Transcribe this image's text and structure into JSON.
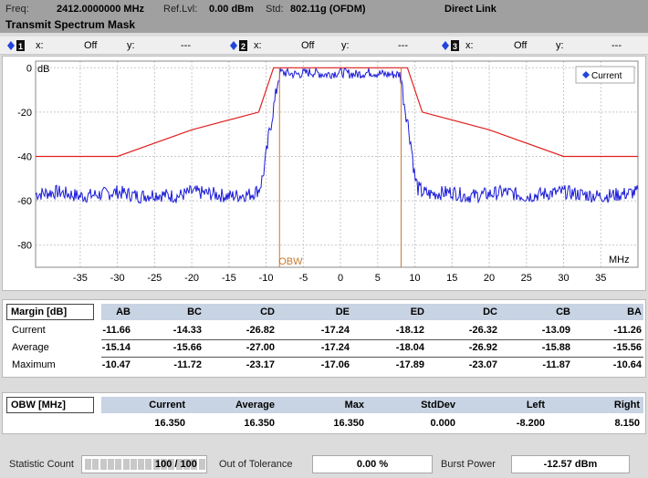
{
  "header": {
    "freq_label": "Freq:",
    "freq_value": "2412.0000000 MHz",
    "reflvl_label": "Ref.Lvl:",
    "reflvl_value": "0.00 dBm",
    "std_label": "Std:",
    "std_value": "802.11g (OFDM)",
    "link": "Direct Link",
    "title": "Transmit Spectrum Mask"
  },
  "markers": [
    {
      "x_label": "x:",
      "x_value": "Off",
      "y_label": "y:",
      "y_value": "---"
    },
    {
      "x_label": "x:",
      "x_value": "Off",
      "y_label": "y:",
      "y_value": "---"
    },
    {
      "x_label": "x:",
      "x_value": "Off",
      "y_label": "y:",
      "y_value": "---"
    }
  ],
  "colors": {
    "trace": "#1a1ad8",
    "mask": "#e02020",
    "obw": "#c87a30",
    "header_bg": "#a0a0a0",
    "table_header": "#c8d3e3",
    "legend_marker": "#2244dd"
  },
  "chart_data": {
    "type": "line",
    "ylabel": "dB",
    "xlabel": "MHz",
    "xlim": [
      -41,
      40
    ],
    "ylim": [
      -90,
      3
    ],
    "x_ticks": [
      -35,
      -30,
      -25,
      -20,
      -15,
      -10,
      -5,
      0,
      5,
      10,
      15,
      20,
      25,
      30,
      35
    ],
    "y_ticks": [
      0,
      -20,
      -40,
      -60,
      -80
    ],
    "grid": true,
    "legend_position": "top-right",
    "series": [
      {
        "name": "Current",
        "type": "trace",
        "x": [
          -41,
          -38,
          -35,
          -32,
          -30,
          -27,
          -25,
          -22,
          -20,
          -17,
          -15,
          -12,
          -11,
          -10.5,
          -10,
          -9.6,
          -9.2,
          -9,
          -8.8,
          -8.6,
          -8.4,
          -8.2,
          -8,
          -6,
          -4,
          -2,
          0,
          2,
          4,
          6,
          7.5,
          8,
          8.2,
          8.4,
          8.6,
          8.8,
          9,
          9.3,
          9.7,
          10,
          10.5,
          11,
          12,
          15,
          17,
          20,
          22,
          25,
          27,
          30,
          32,
          35,
          38,
          40
        ],
        "y": [
          -57,
          -56,
          -58,
          -57,
          -56,
          -58,
          -57,
          -58,
          -56,
          -57,
          -58,
          -57,
          -55,
          -50,
          -40,
          -30,
          -22,
          -18,
          -15,
          -10,
          -5,
          -3,
          -2,
          -3,
          -2,
          -3,
          -2,
          -3,
          -2,
          -3,
          -3,
          -3,
          -5,
          -12,
          -16,
          -20,
          -24,
          -30,
          -40,
          -50,
          -55,
          -56,
          -57,
          -56,
          -58,
          -57,
          -56,
          -58,
          -57,
          -56,
          -57,
          -58,
          -57,
          -56
        ]
      }
    ],
    "mask": {
      "x": [
        -41,
        -30,
        -20,
        -11,
        -9,
        9,
        11,
        20,
        30,
        40
      ],
      "y": [
        -40,
        -40,
        -28,
        -20,
        0,
        0,
        -20,
        -28,
        -40,
        -40
      ]
    },
    "annotations": {
      "obw_label": "OBW",
      "obw_left": -8.2,
      "obw_right": 8.15,
      "legend_label": "Current"
    }
  },
  "margin_table": {
    "title": "Margin [dB]",
    "columns": [
      "AB",
      "BC",
      "CD",
      "DE",
      "ED",
      "DC",
      "CB",
      "BA"
    ],
    "rows": [
      {
        "label": "Current",
        "values": [
          "-11.66",
          "-14.33",
          "-26.82",
          "-17.24",
          "-18.12",
          "-26.32",
          "-13.09",
          "-11.26"
        ]
      },
      {
        "label": "Average",
        "values": [
          "-15.14",
          "-15.66",
          "-27.00",
          "-17.24",
          "-18.04",
          "-26.92",
          "-15.88",
          "-15.56"
        ]
      },
      {
        "label": "Maximum",
        "values": [
          "-10.47",
          "-11.72",
          "-23.17",
          "-17.06",
          "-17.89",
          "-23.07",
          "-11.87",
          "-10.64"
        ]
      }
    ]
  },
  "obw_table": {
    "title": "OBW [MHz]",
    "columns": [
      "Current",
      "Average",
      "Max",
      "StdDev",
      "Left",
      "Right"
    ],
    "values": [
      "16.350",
      "16.350",
      "16.350",
      "0.000",
      "-8.200",
      "8.150"
    ]
  },
  "status": {
    "stat_count_label": "Statistic Count",
    "stat_count_value": "100 / 100",
    "stat_progress": 1.0,
    "out_tol_label": "Out of Tolerance",
    "out_tol_value": "0.00 %",
    "burst_label": "Burst Power",
    "burst_value": "-12.57 dBm"
  }
}
